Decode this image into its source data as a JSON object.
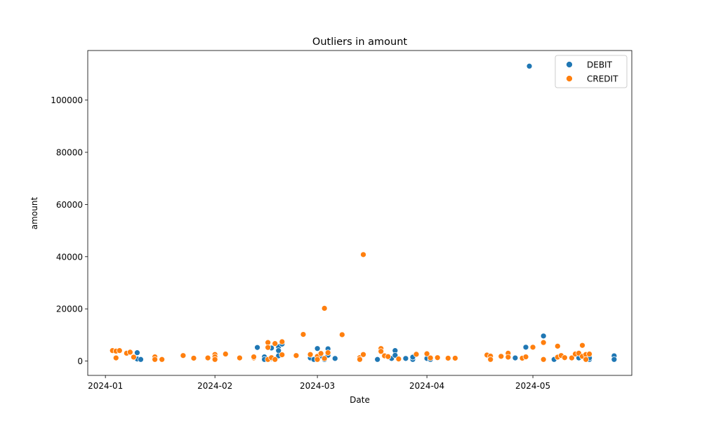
{
  "chart_data": {
    "type": "scatter",
    "title": "Outliers in amount",
    "xlabel": "Date",
    "ylabel": "amount",
    "xlim": [
      "2023-12-27",
      "2024-05-29"
    ],
    "ylim": [
      -5500,
      119000
    ],
    "x_ticks": [
      {
        "value": "2024-01-01",
        "label": "2024-01"
      },
      {
        "value": "2024-02-01",
        "label": "2024-02"
      },
      {
        "value": "2024-03-01",
        "label": "2024-03"
      },
      {
        "value": "2024-04-01",
        "label": "2024-04"
      },
      {
        "value": "2024-05-01",
        "label": "2024-05"
      }
    ],
    "y_ticks": [
      0,
      20000,
      40000,
      60000,
      80000,
      100000
    ],
    "grid": false,
    "legend_position": "top-right",
    "series": [
      {
        "name": "DEBIT",
        "color": "#1f77b4",
        "points": [
          [
            "2024-01-10",
            3200
          ],
          [
            "2024-01-10",
            800
          ],
          [
            "2024-01-11",
            600
          ],
          [
            "2024-02-13",
            5200
          ],
          [
            "2024-02-15",
            1600
          ],
          [
            "2024-02-15",
            600
          ],
          [
            "2024-02-17",
            5000
          ],
          [
            "2024-02-17",
            1000
          ],
          [
            "2024-02-19",
            5500
          ],
          [
            "2024-02-19",
            4000
          ],
          [
            "2024-02-19",
            2000
          ],
          [
            "2024-02-20",
            6500
          ],
          [
            "2024-02-28",
            1200
          ],
          [
            "2024-02-29",
            600
          ],
          [
            "2024-03-01",
            4800
          ],
          [
            "2024-03-02",
            2000
          ],
          [
            "2024-03-03",
            600
          ],
          [
            "2024-03-04",
            4700
          ],
          [
            "2024-03-04",
            2200
          ],
          [
            "2024-03-06",
            1000
          ],
          [
            "2024-03-18",
            600
          ],
          [
            "2024-03-22",
            1000
          ],
          [
            "2024-03-23",
            4000
          ],
          [
            "2024-03-23",
            2200
          ],
          [
            "2024-03-26",
            1000
          ],
          [
            "2024-03-28",
            600
          ],
          [
            "2024-03-28",
            1500
          ],
          [
            "2024-04-01",
            1000
          ],
          [
            "2024-04-02",
            600
          ],
          [
            "2024-04-26",
            1200
          ],
          [
            "2024-04-29",
            5300
          ],
          [
            "2024-04-30",
            113000
          ],
          [
            "2024-05-04",
            9600
          ],
          [
            "2024-05-07",
            600
          ],
          [
            "2024-05-14",
            1200
          ],
          [
            "2024-05-17",
            600
          ],
          [
            "2024-05-17",
            1200
          ],
          [
            "2024-05-24",
            2000
          ],
          [
            "2024-05-24",
            600
          ]
        ]
      },
      {
        "name": "CREDIT",
        "color": "#ff7f0e",
        "points": [
          [
            "2024-01-03",
            4000
          ],
          [
            "2024-01-04",
            3800
          ],
          [
            "2024-01-04",
            1200
          ],
          [
            "2024-01-05",
            4000
          ],
          [
            "2024-01-07",
            3000
          ],
          [
            "2024-01-08",
            3400
          ],
          [
            "2024-01-09",
            1500
          ],
          [
            "2024-01-15",
            1600
          ],
          [
            "2024-01-15",
            600
          ],
          [
            "2024-01-17",
            600
          ],
          [
            "2024-01-23",
            2100
          ],
          [
            "2024-01-26",
            1100
          ],
          [
            "2024-01-30",
            1200
          ],
          [
            "2024-02-01",
            2500
          ],
          [
            "2024-02-01",
            1600
          ],
          [
            "2024-02-01",
            600
          ],
          [
            "2024-02-04",
            2700
          ],
          [
            "2024-02-08",
            1200
          ],
          [
            "2024-02-12",
            1200
          ],
          [
            "2024-02-12",
            1600
          ],
          [
            "2024-02-16",
            7100
          ],
          [
            "2024-02-16",
            5200
          ],
          [
            "2024-02-16",
            600
          ],
          [
            "2024-02-17",
            1300
          ],
          [
            "2024-02-18",
            6700
          ],
          [
            "2024-02-18",
            600
          ],
          [
            "2024-02-20",
            7400
          ],
          [
            "2024-02-20",
            2400
          ],
          [
            "2024-02-24",
            2100
          ],
          [
            "2024-02-26",
            10200
          ],
          [
            "2024-02-28",
            2500
          ],
          [
            "2024-03-01",
            1800
          ],
          [
            "2024-03-01",
            600
          ],
          [
            "2024-03-02",
            2900
          ],
          [
            "2024-03-03",
            20200
          ],
          [
            "2024-03-03",
            1000
          ],
          [
            "2024-03-04",
            3200
          ],
          [
            "2024-03-08",
            10100
          ],
          [
            "2024-03-13",
            1300
          ],
          [
            "2024-03-13",
            600
          ],
          [
            "2024-03-14",
            40800
          ],
          [
            "2024-03-14",
            2500
          ],
          [
            "2024-03-19",
            4800
          ],
          [
            "2024-03-19",
            3700
          ],
          [
            "2024-03-20",
            2000
          ],
          [
            "2024-03-21",
            1700
          ],
          [
            "2024-03-24",
            800
          ],
          [
            "2024-03-29",
            2600
          ],
          [
            "2024-04-01",
            2800
          ],
          [
            "2024-04-02",
            1200
          ],
          [
            "2024-04-04",
            1300
          ],
          [
            "2024-04-07",
            1100
          ],
          [
            "2024-04-09",
            1100
          ],
          [
            "2024-04-18",
            2300
          ],
          [
            "2024-04-19",
            1900
          ],
          [
            "2024-04-19",
            600
          ],
          [
            "2024-04-22",
            1800
          ],
          [
            "2024-04-24",
            3000
          ],
          [
            "2024-04-24",
            1500
          ],
          [
            "2024-04-28",
            1100
          ],
          [
            "2024-04-29",
            1600
          ],
          [
            "2024-05-01",
            5300
          ],
          [
            "2024-05-04",
            7100
          ],
          [
            "2024-05-04",
            600
          ],
          [
            "2024-05-08",
            5700
          ],
          [
            "2024-05-08",
            1500
          ],
          [
            "2024-05-09",
            2100
          ],
          [
            "2024-05-10",
            1300
          ],
          [
            "2024-05-12",
            1200
          ],
          [
            "2024-05-13",
            2700
          ],
          [
            "2024-05-14",
            3000
          ],
          [
            "2024-05-15",
            1800
          ],
          [
            "2024-05-15",
            6000
          ],
          [
            "2024-05-16",
            2500
          ],
          [
            "2024-05-16",
            600
          ],
          [
            "2024-05-17",
            2700
          ]
        ]
      }
    ]
  }
}
